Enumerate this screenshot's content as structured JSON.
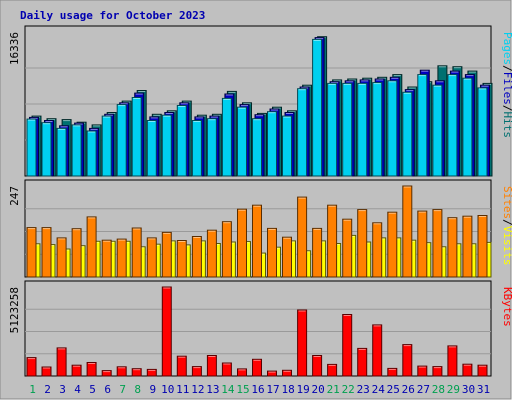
{
  "chart_data": {
    "type": "bar",
    "title": "Daily usage for October 2023",
    "days": [
      "1",
      "2",
      "3",
      "4",
      "5",
      "6",
      "7",
      "8",
      "9",
      "10",
      "11",
      "12",
      "13",
      "14",
      "15",
      "16",
      "17",
      "18",
      "19",
      "20",
      "21",
      "22",
      "23",
      "24",
      "25",
      "26",
      "27",
      "28",
      "29",
      "30",
      "31"
    ],
    "weekend_days": [
      "1",
      "7",
      "8",
      "14",
      "15",
      "21",
      "22",
      "28",
      "29"
    ],
    "panels": [
      {
        "id": "top",
        "max_label": "16336",
        "ymax": 16336,
        "series": [
          {
            "name": "Hits",
            "color": "#007070",
            "values": [
              6800,
              6500,
              6400,
              6100,
              5800,
              7200,
              8500,
              9700,
              7000,
              7400,
              8500,
              6900,
              7000,
              9600,
              8300,
              7100,
              7800,
              7400,
              10300,
              15800,
              10900,
              11000,
              11100,
              11200,
              11500,
              10100,
              10700,
              12500,
              12400,
              11900,
              10500
            ]
          },
          {
            "name": "Files",
            "color": "#0000c0",
            "values": [
              6650,
              6300,
              5700,
              6000,
              5400,
              7000,
              8300,
              9400,
              6700,
              7200,
              8300,
              6700,
              6800,
              9300,
              8100,
              6950,
              7600,
              7200,
              10100,
              15700,
              10700,
              10800,
              10900,
              11000,
              11200,
              9800,
              12000,
              10800,
              11900,
              11500,
              10300
            ]
          },
          {
            "name": "Pages",
            "color": "#00d0f0",
            "values": [
              6450,
              6050,
              5400,
              5800,
              5100,
              6800,
              8100,
              8900,
              6300,
              6900,
              8000,
              6300,
              6500,
              8800,
              7800,
              6500,
              7300,
              6800,
              9900,
              15500,
              10500,
              10500,
              10500,
              10600,
              10800,
              9500,
              11500,
              10300,
              11500,
              11100,
              10000
            ]
          }
        ]
      },
      {
        "id": "middle",
        "max_label": "247",
        "ymax": 247,
        "series": [
          {
            "name": "Visits",
            "color": "#ffff00",
            "values": [
              90,
              88,
              76,
              85,
              97,
              97,
              97,
              82,
              89,
              98,
              87,
              98,
              91,
              95,
              96,
              65,
              81,
              98,
              71,
              98,
              91,
              113,
              95,
              106,
              106,
              100,
              93,
              82,
              90,
              90,
              94
            ]
          },
          {
            "name": "Sites",
            "color": "#ff8000",
            "values": [
              134,
              134,
              106,
              131,
              163,
              100,
              103,
              133,
              106,
              121,
              99,
              110,
              127,
              150,
              184,
              195,
              132,
              108,
              217,
              132,
              195,
              157,
              183,
              147,
              176,
              247,
              179,
              183,
              161,
              165,
              167
            ]
          }
        ]
      },
      {
        "id": "bottom",
        "max_label": "5123258",
        "ymax": 5123258,
        "series": [
          {
            "name": "KBytes",
            "color": "#ff0000",
            "values": [
              1060000,
              520000,
              1620000,
              620000,
              780000,
              310000,
              530000,
              420000,
              380000,
              5123258,
              1140000,
              540000,
              1180000,
              750000,
              410000,
              960000,
              280000,
              330000,
              3800000,
              1180000,
              670000,
              3540000,
              1590000,
              2940000,
              440000,
              1810000,
              570000,
              540000,
              1730000,
              680000,
              620000
            ]
          }
        ]
      }
    ],
    "right_labels": {
      "top": [
        "Pages",
        "Files",
        "Hits"
      ],
      "middle": [
        "Sites",
        "Visits"
      ],
      "bottom": [
        "KBytes"
      ]
    },
    "colors": {
      "background": "#ffffff",
      "frame": "#bcbcbc",
      "plot_bg": "#c0c0c0",
      "title": "#0000b0",
      "weekday": "#0000b0",
      "weekend": "#00a050"
    }
  }
}
